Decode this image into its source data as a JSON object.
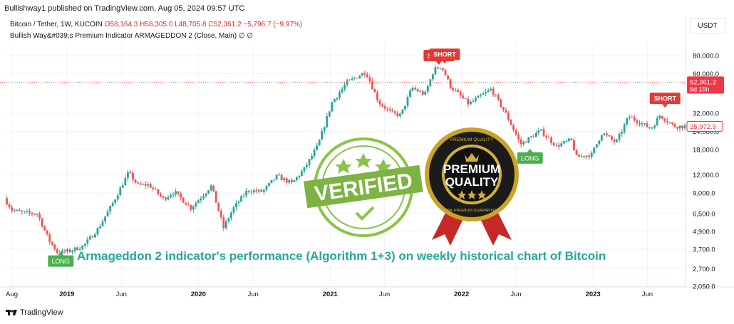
{
  "header": {
    "publisher_line": "Bullishway1 published on TradingView.com, Aug 05, 2024 09:57 UTC"
  },
  "legend": {
    "symbol": "Bitcoin / Tether, 1W, KUCOIN",
    "open": "O58,164.3",
    "high": "H58,305.0",
    "low": "L48,705.8",
    "close": "C52,361.2",
    "change": "−5,796.7 (−9.97%)",
    "indicator": "Bullish Way&#039;s Premium Indicator ARMAGEDDON 2 (Close, Main)  ∅  ∅"
  },
  "currency_button": "USDT",
  "footer": {
    "brand": "TradingView",
    "logo_icon": "tradingview-logo-icon"
  },
  "caption": "Armageddon 2 indicator's performance (Algorithm 1+3) on weekly historical chart of Bitcoin",
  "badges": {
    "verified_text": "VERIFIED",
    "premium_line1": "PREMIUM",
    "premium_line2": "QUALITY",
    "premium_ring_top": "PREMIUM QUALITY",
    "premium_ring_bottom": "100% PREMIUM GUARANTEED"
  },
  "colors": {
    "up": "#26a69a",
    "down": "#ef5350",
    "long": "#4caf50",
    "short": "#e53935",
    "grid": "#f0f3fa"
  },
  "chart_data": {
    "type": "candlestick",
    "scale": "log",
    "ylim": [
      2050,
      98000
    ],
    "y_ticks": [
      {
        "label": "80,000.0",
        "value": 80000
      },
      {
        "label": "60,000.0",
        "value": 60000
      },
      {
        "label": "32,000.0",
        "value": 32000
      },
      {
        "label": "24,000.0",
        "value": 24000
      },
      {
        "label": "18,000.0",
        "value": 18000
      },
      {
        "label": "12,000.0",
        "value": 12000
      },
      {
        "label": "9,000.0",
        "value": 9000
      },
      {
        "label": "6,500.0",
        "value": 6500
      },
      {
        "label": "4,900.0",
        "value": 4900
      },
      {
        "label": "3,700.0",
        "value": 3700
      },
      {
        "label": "2,700.0",
        "value": 2700
      },
      {
        "label": "2,050.0",
        "value": 2050
      }
    ],
    "x_range": [
      "2018-07-15",
      "2023-09-15"
    ],
    "x_ticks": [
      {
        "label": "Aug",
        "date": "2018-08-01"
      },
      {
        "label": "2019",
        "date": "2019-01-01"
      },
      {
        "label": "Jun",
        "date": "2019-06-01"
      },
      {
        "label": "2020",
        "date": "2020-01-01"
      },
      {
        "label": "Jun",
        "date": "2020-06-01"
      },
      {
        "label": "2021",
        "date": "2021-01-01"
      },
      {
        "label": "Jun",
        "date": "2021-06-01"
      },
      {
        "label": "2022",
        "date": "2022-01-01"
      },
      {
        "label": "Jun",
        "date": "2022-06-01"
      },
      {
        "label": "2023",
        "date": "2023-01-01"
      },
      {
        "label": "Jun",
        "date": "2023-06-01"
      }
    ],
    "price_path": [
      [
        "2018-07-15",
        8300
      ],
      [
        "2018-08-05",
        6900
      ],
      [
        "2018-09-01",
        6600
      ],
      [
        "2018-10-15",
        6500
      ],
      [
        "2018-11-15",
        4300
      ],
      [
        "2018-12-10",
        3500
      ],
      [
        "2019-01-15",
        3600
      ],
      [
        "2019-02-20",
        3900
      ],
      [
        "2019-04-01",
        5100
      ],
      [
        "2019-05-10",
        7500
      ],
      [
        "2019-06-25",
        12500
      ],
      [
        "2019-07-20",
        10200
      ],
      [
        "2019-08-20",
        10300
      ],
      [
        "2019-09-30",
        8200
      ],
      [
        "2019-10-30",
        9200
      ],
      [
        "2019-12-15",
        7100
      ],
      [
        "2020-02-10",
        10100
      ],
      [
        "2020-03-15",
        5200
      ],
      [
        "2020-04-10",
        7000
      ],
      [
        "2020-05-20",
        9400
      ],
      [
        "2020-07-01",
        9200
      ],
      [
        "2020-08-10",
        11800
      ],
      [
        "2020-09-20",
        10500
      ],
      [
        "2020-10-25",
        13200
      ],
      [
        "2020-12-01",
        19000
      ],
      [
        "2021-01-10",
        38000
      ],
      [
        "2021-02-20",
        52000
      ],
      [
        "2021-04-14",
        62000
      ],
      [
        "2021-05-20",
        38000
      ],
      [
        "2021-06-25",
        32000
      ],
      [
        "2021-07-20",
        31000
      ],
      [
        "2021-08-20",
        48000
      ],
      [
        "2021-09-25",
        43000
      ],
      [
        "2021-10-20",
        64000
      ],
      [
        "2021-11-10",
        67500
      ],
      [
        "2021-12-05",
        49000
      ],
      [
        "2022-01-25",
        37000
      ],
      [
        "2022-03-28",
        47000
      ],
      [
        "2022-05-10",
        31000
      ],
      [
        "2022-06-18",
        19500
      ],
      [
        "2022-08-12",
        24300
      ],
      [
        "2022-09-25",
        19000
      ],
      [
        "2022-11-05",
        21000
      ],
      [
        "2022-11-20",
        16000
      ],
      [
        "2023-01-01",
        16600
      ],
      [
        "2023-01-30",
        23500
      ],
      [
        "2023-03-10",
        20000
      ],
      [
        "2023-04-14",
        30500
      ],
      [
        "2023-06-15",
        25000
      ],
      [
        "2023-07-10",
        31000
      ],
      [
        "2023-08-18",
        26000
      ],
      [
        "2023-09-10",
        25972.5
      ]
    ],
    "signals": [
      {
        "label": "LONG",
        "date": "2018-12-15",
        "price": 3350,
        "type": "long"
      },
      {
        "label": "SHORT",
        "date": "2021-10-30",
        "price": 73000,
        "type": "short"
      },
      {
        "label": "SHORT",
        "date": "2021-11-15",
        "price": 74500,
        "type": "short"
      },
      {
        "label": "LONG",
        "date": "2022-07-10",
        "price": 17200,
        "type": "long"
      },
      {
        "label": "SHORT",
        "date": "2023-07-20",
        "price": 37000,
        "type": "short"
      }
    ],
    "price_labels": [
      {
        "label": "52,361.2",
        "sub": "6d 15h",
        "value": 52361.2,
        "style": "filled-red"
      },
      {
        "label": "25,972.5",
        "value": 25972.5,
        "style": "outline-red"
      }
    ],
    "reference_line": {
      "value": 52361.2,
      "style": "dotted"
    }
  }
}
